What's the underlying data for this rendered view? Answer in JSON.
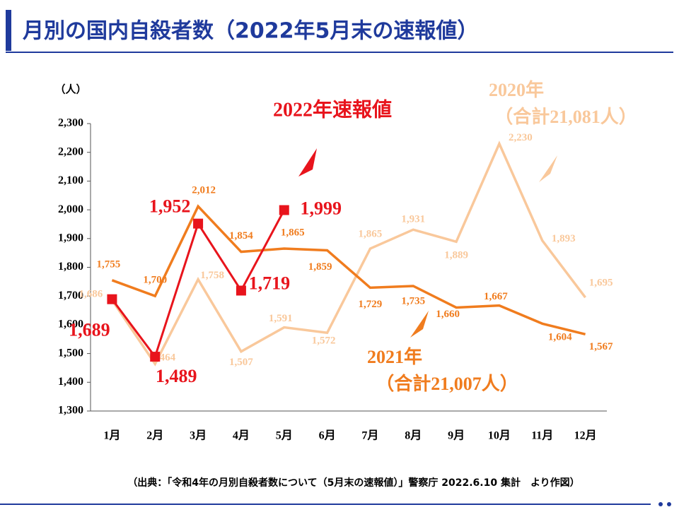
{
  "title": "月別の国内自殺者数（2022年5月末の速報値）",
  "source": "（出典：「令和4年の月別自殺者数について（5月末の速報値）」警察庁 2022.6.10 集計　より作図）",
  "chart_data": {
    "type": "line",
    "y_label": "（人）",
    "categories": [
      "1月",
      "2月",
      "3月",
      "4月",
      "5月",
      "6月",
      "7月",
      "8月",
      "9月",
      "10月",
      "11月",
      "12月"
    ],
    "ylim": [
      1300,
      2300
    ],
    "yticks": [
      {
        "value": 1300,
        "label": "1,300"
      },
      {
        "value": 1400,
        "label": "1,400"
      },
      {
        "value": 1500,
        "label": "1,500"
      },
      {
        "value": 1600,
        "label": "1,600"
      },
      {
        "value": 1700,
        "label": "1,700"
      },
      {
        "value": 1800,
        "label": "1,800"
      },
      {
        "value": 1900,
        "label": "1,900"
      },
      {
        "value": 2000,
        "label": "2,000"
      },
      {
        "value": 2100,
        "label": "2,100"
      },
      {
        "value": 2200,
        "label": "2,200"
      },
      {
        "value": 2300,
        "label": "2,300"
      }
    ],
    "grid": false,
    "series": [
      {
        "name": "2020年",
        "total": "（合計21,081人）",
        "color": "#f9c89b",
        "values": [
          1686,
          1464,
          1758,
          1507,
          1591,
          1572,
          1865,
          1931,
          1889,
          2230,
          1893,
          1695
        ],
        "value_labels": [
          "1,686",
          "1,464",
          "1,758",
          "1,507",
          "1,591",
          "1,572",
          "1,865",
          "1,931",
          "1,889",
          "2,230",
          "1,893",
          "1,695"
        ]
      },
      {
        "name": "2021年",
        "total": "（合計21,007人）",
        "color": "#f07c1e",
        "values": [
          1755,
          1700,
          2012,
          1854,
          1865,
          1859,
          1729,
          1735,
          1660,
          1667,
          1604,
          1567
        ],
        "value_labels": [
          "1,755",
          "1,700",
          "2,012",
          "1,854",
          "1,865",
          "1,859",
          "1,729",
          "1,735",
          "1,660",
          "1,667",
          "1,604",
          "1,567"
        ]
      },
      {
        "name": "2022年速報値",
        "color": "#e8141c",
        "values": [
          1689,
          1489,
          1952,
          1719,
          1999,
          null,
          null,
          null,
          null,
          null,
          null,
          null
        ],
        "value_labels": [
          "1,689",
          "1,489",
          "1,952",
          "1,719",
          "1,999",
          null,
          null,
          null,
          null,
          null,
          null,
          null
        ]
      }
    ]
  }
}
